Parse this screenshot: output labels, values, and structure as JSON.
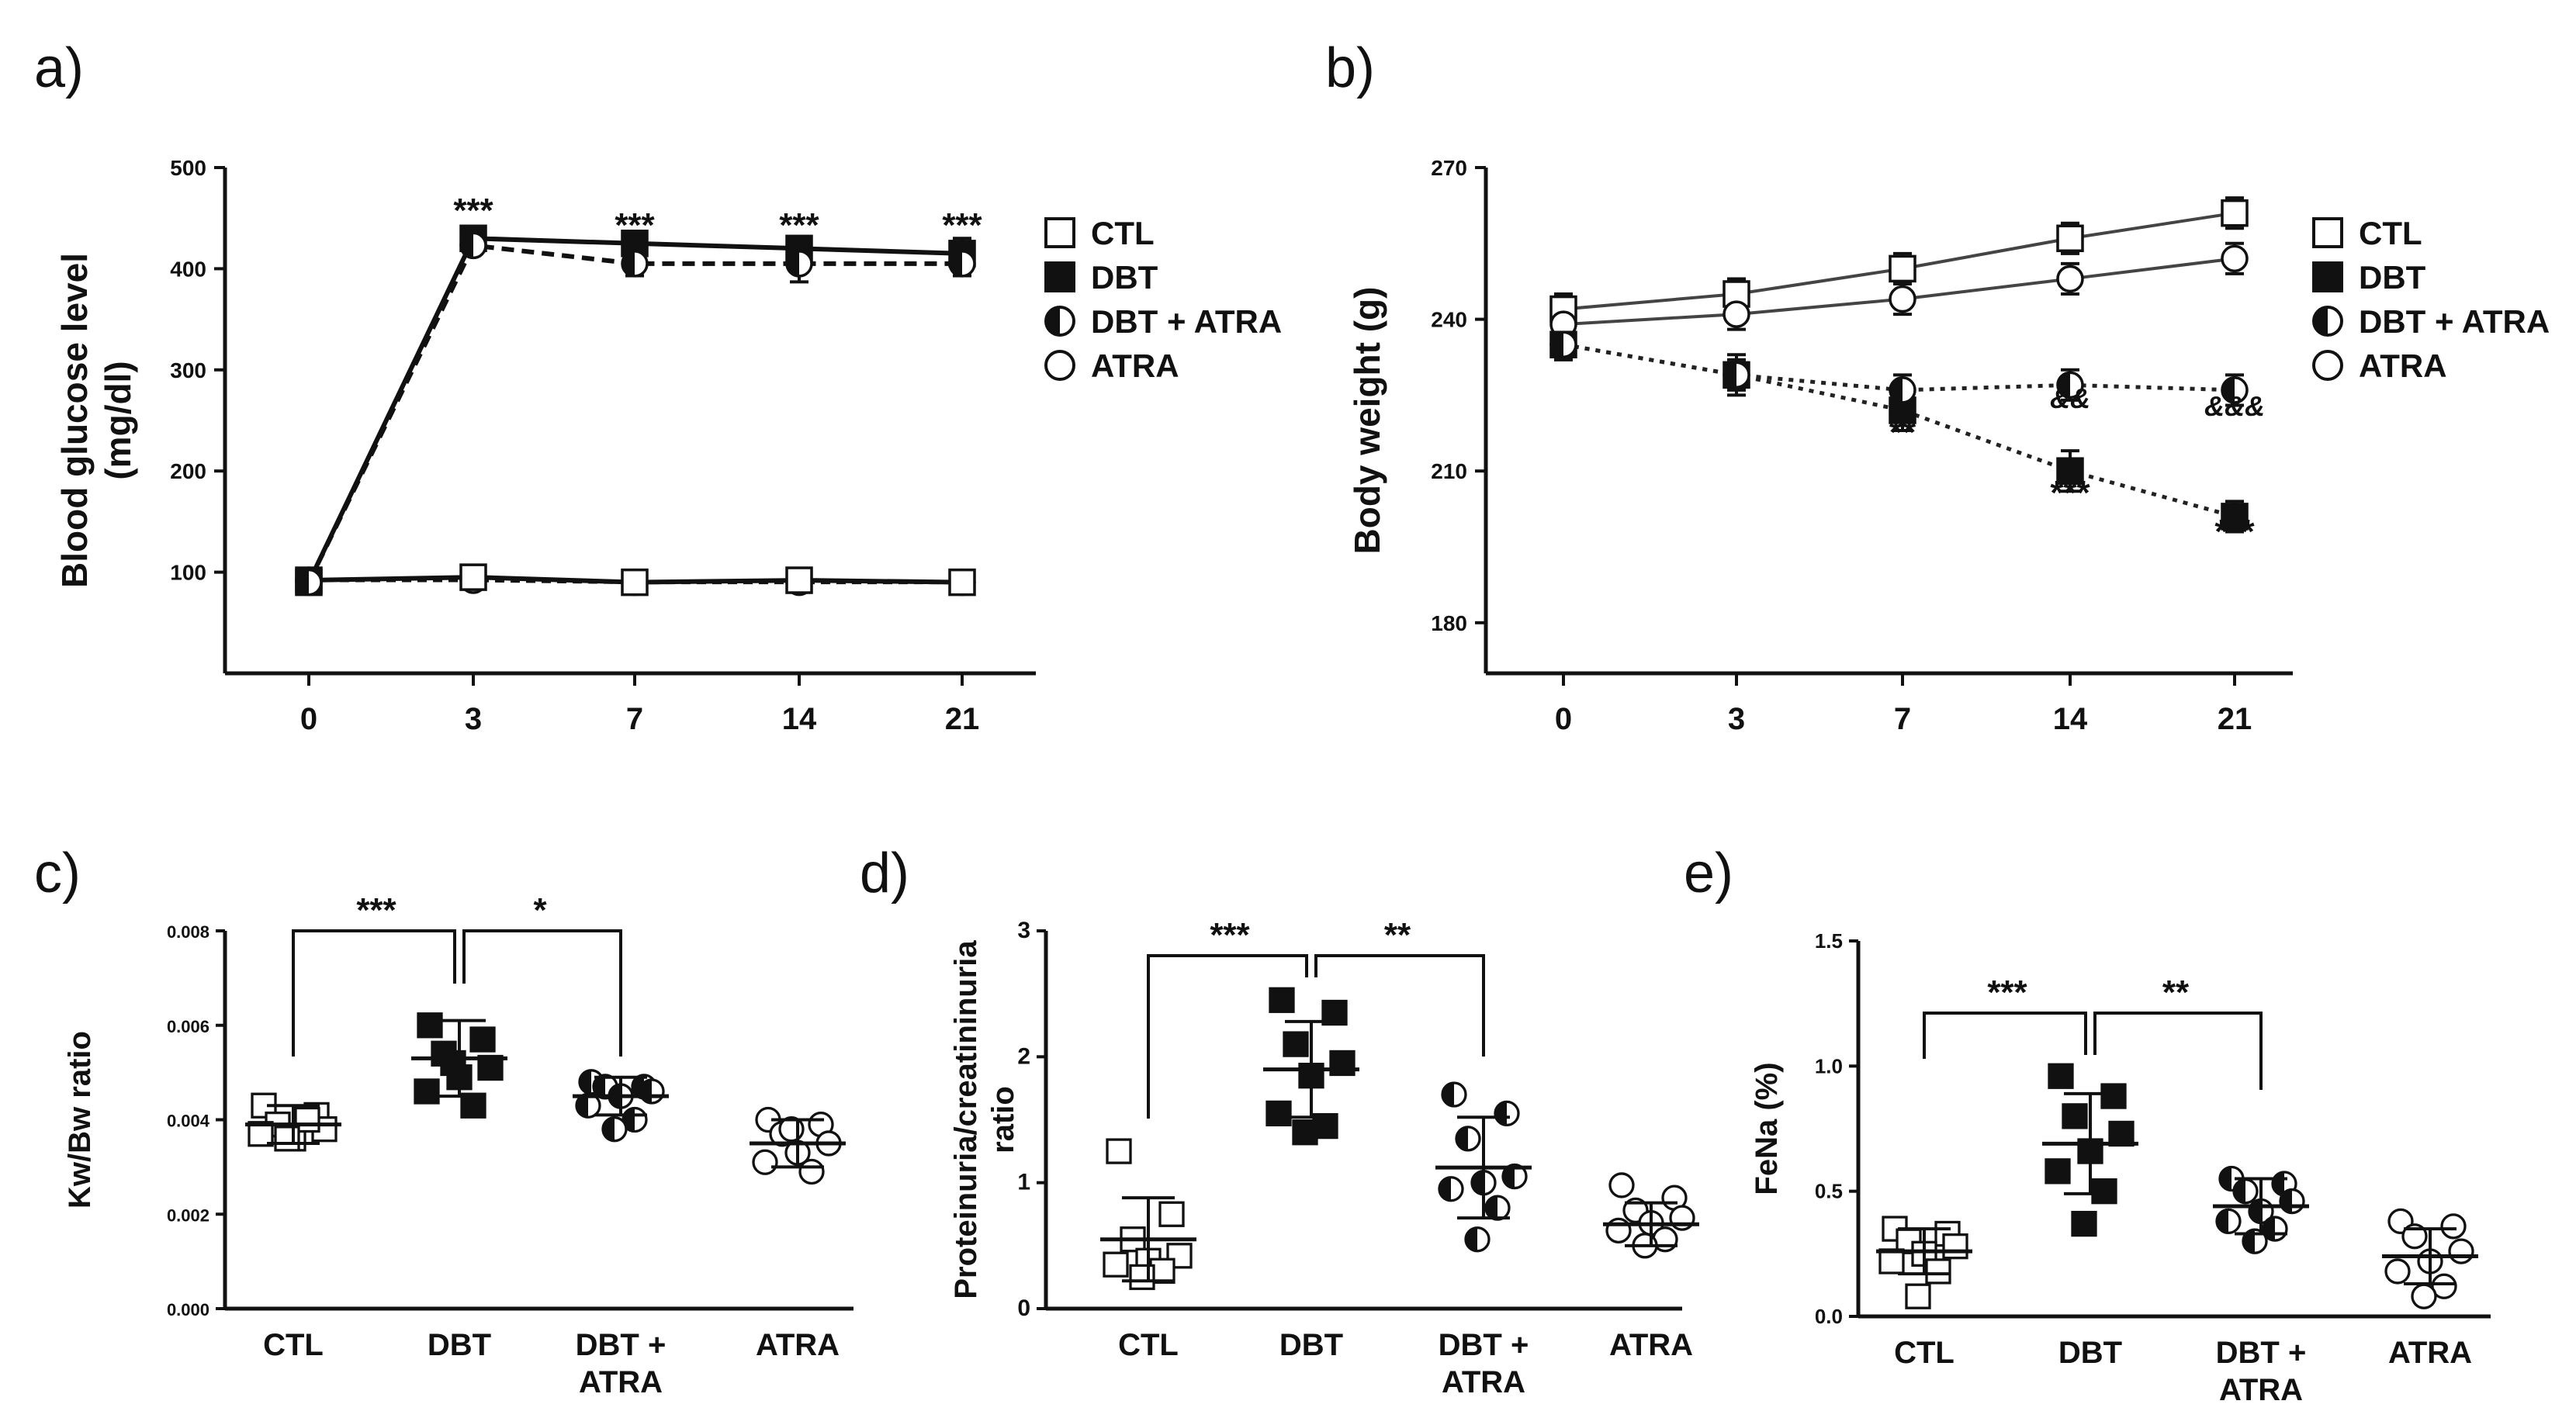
{
  "colors": {
    "ink": "#111111",
    "paper": "#ffffff",
    "line_a": "#111111",
    "line_b": "#666666"
  },
  "legend": [
    "CTL",
    "DBT",
    "DBT + ATRA",
    "ATRA"
  ],
  "chart_data": [
    {
      "id": "a",
      "panel_label": "a)",
      "type": "line",
      "ylabel_line1": "Blood glucose level",
      "ylabel_line2": "(mg/dl)",
      "x": [
        "0",
        "3",
        "7",
        "14",
        "21"
      ],
      "yticks": [
        "100",
        "200",
        "300",
        "400",
        "500"
      ],
      "ylim": [
        0,
        500
      ],
      "grid": false,
      "legend_position": "right",
      "series": [
        {
          "name": "CTL",
          "values": [
            92,
            95,
            90,
            92,
            90
          ],
          "err": [
            6,
            6,
            6,
            6,
            6
          ]
        },
        {
          "name": "DBT",
          "values": [
            90,
            430,
            425,
            420,
            415
          ],
          "err": [
            8,
            8,
            10,
            10,
            15
          ]
        },
        {
          "name": "DBT + ATRA",
          "values": [
            90,
            423,
            405,
            405,
            405
          ],
          "err": [
            8,
            8,
            12,
            18,
            12
          ]
        },
        {
          "name": "ATRA",
          "values": [
            92,
            92,
            90,
            90,
            90
          ],
          "err": [
            6,
            6,
            6,
            6,
            6
          ]
        }
      ],
      "annotations": [
        "***",
        "***",
        "***",
        "***"
      ]
    },
    {
      "id": "b",
      "panel_label": "b)",
      "type": "line",
      "ylabel": "Body weight (g)",
      "x": [
        "0",
        "3",
        "7",
        "14",
        "21"
      ],
      "yticks": [
        "180",
        "210",
        "240",
        "270"
      ],
      "ylim": [
        170,
        270
      ],
      "grid": false,
      "legend_position": "right",
      "series": [
        {
          "name": "CTL",
          "values": [
            242,
            245,
            250,
            256,
            261
          ],
          "err": [
            3,
            3,
            3,
            3,
            3
          ]
        },
        {
          "name": "DBT",
          "values": [
            235,
            229,
            222,
            210,
            201
          ],
          "err": [
            3,
            4,
            4,
            4,
            3
          ]
        },
        {
          "name": "DBT + ATRA",
          "values": [
            235,
            229,
            226,
            227,
            226
          ],
          "err": [
            3,
            3,
            3,
            3,
            3
          ]
        },
        {
          "name": "ATRA",
          "values": [
            239,
            241,
            244,
            248,
            252
          ],
          "err": [
            3,
            3,
            3,
            3,
            3
          ]
        }
      ],
      "annotations_dbt": [
        "**",
        "***",
        "***"
      ],
      "annotations_atra": [
        "&&",
        "&&&"
      ]
    },
    {
      "id": "c",
      "panel_label": "c)",
      "type": "scatter",
      "ylabel": "Kw/Bw ratio",
      "categories": [
        "CTL",
        "DBT",
        "DBT +",
        "ATRA"
      ],
      "category_line2": [
        "",
        "",
        "ATRA",
        ""
      ],
      "yticks": [
        "0.000",
        "0.002",
        "0.004",
        "0.006",
        "0.008"
      ],
      "ylim": [
        0,
        0.008
      ],
      "grid": false,
      "groups": [
        {
          "name": "CTL",
          "values": [
            0.0043,
            0.0041,
            0.0039,
            0.0038,
            0.0036,
            0.0037,
            0.004,
            0.0036
          ],
          "mean": 0.0039,
          "sd": 0.0004
        },
        {
          "name": "DBT",
          "values": [
            0.006,
            0.0057,
            0.0054,
            0.0051,
            0.0049,
            0.0046,
            0.0043,
            0.0052
          ],
          "mean": 0.0053,
          "sd": 0.0008
        },
        {
          "name": "DBT + ATRA",
          "values": [
            0.0048,
            0.0047,
            0.0047,
            0.0046,
            0.0045,
            0.0043,
            0.004,
            0.0038
          ],
          "mean": 0.0045,
          "sd": 0.0004
        },
        {
          "name": "ATRA",
          "values": [
            0.004,
            0.0039,
            0.0037,
            0.0035,
            0.0033,
            0.0031,
            0.0029,
            0.0038
          ],
          "mean": 0.0035,
          "sd": 0.0005
        }
      ],
      "brackets": [
        "***",
        "*"
      ]
    },
    {
      "id": "d",
      "panel_label": "d)",
      "type": "scatter",
      "ylabel_line1": "Proteinuria/creatininuria",
      "ylabel_line2": "ratio",
      "categories": [
        "CTL",
        "DBT",
        "DBT +",
        "ATRA"
      ],
      "category_line2": [
        "",
        "",
        "ATRA",
        ""
      ],
      "yticks": [
        "0",
        "1",
        "2",
        "3"
      ],
      "ylim": [
        0,
        3
      ],
      "grid": false,
      "groups": [
        {
          "name": "CTL",
          "values": [
            1.25,
            0.75,
            0.55,
            0.42,
            0.38,
            0.35,
            0.3,
            0.25
          ],
          "mean": 0.55,
          "sd": 0.33
        },
        {
          "name": "DBT",
          "values": [
            2.45,
            2.35,
            2.1,
            1.95,
            1.85,
            1.55,
            1.45,
            1.4
          ],
          "mean": 1.9,
          "sd": 0.38
        },
        {
          "name": "DBT + ATRA",
          "values": [
            1.7,
            1.55,
            1.35,
            1.05,
            1.0,
            0.95,
            0.8,
            0.55
          ],
          "mean": 1.12,
          "sd": 0.4
        },
        {
          "name": "ATRA",
          "values": [
            0.98,
            0.88,
            0.78,
            0.72,
            0.68,
            0.62,
            0.55,
            0.5
          ],
          "mean": 0.67,
          "sd": 0.17
        }
      ],
      "brackets": [
        "***",
        "**"
      ]
    },
    {
      "id": "e",
      "panel_label": "e)",
      "type": "scatter",
      "ylabel": "FeNa (%)",
      "categories": [
        "CTL",
        "DBT",
        "DBT +",
        "ATRA"
      ],
      "category_line2": [
        "",
        "",
        "ATRA",
        ""
      ],
      "yticks": [
        "0.0",
        "0.5",
        "1.0",
        "1.5"
      ],
      "ylim": [
        0,
        1.5
      ],
      "grid": false,
      "groups": [
        {
          "name": "CTL",
          "values": [
            0.35,
            0.33,
            0.3,
            0.28,
            0.25,
            0.22,
            0.18,
            0.08
          ],
          "mean": 0.26,
          "sd": 0.09
        },
        {
          "name": "DBT",
          "values": [
            0.96,
            0.88,
            0.8,
            0.73,
            0.66,
            0.58,
            0.5,
            0.37
          ],
          "mean": 0.69,
          "sd": 0.2
        },
        {
          "name": "DBT + ATRA",
          "values": [
            0.55,
            0.53,
            0.5,
            0.46,
            0.42,
            0.38,
            0.35,
            0.3
          ],
          "mean": 0.44,
          "sd": 0.11
        },
        {
          "name": "ATRA",
          "values": [
            0.38,
            0.36,
            0.32,
            0.26,
            0.22,
            0.18,
            0.12,
            0.08
          ],
          "mean": 0.24,
          "sd": 0.11
        }
      ],
      "brackets": [
        "***",
        "**"
      ]
    }
  ]
}
